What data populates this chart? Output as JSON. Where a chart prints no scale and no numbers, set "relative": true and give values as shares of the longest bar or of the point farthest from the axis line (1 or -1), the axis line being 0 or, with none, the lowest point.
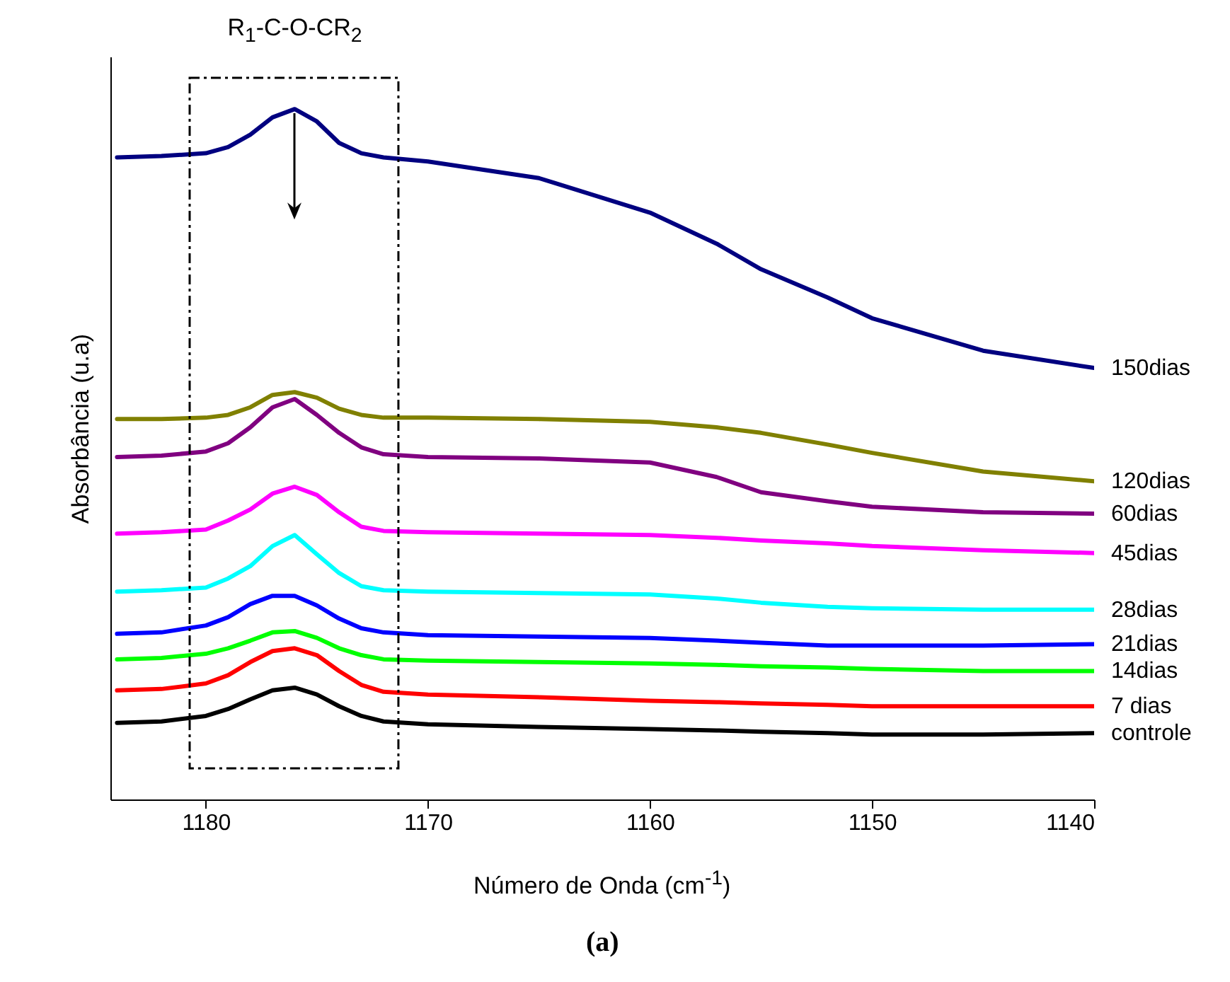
{
  "chart_data": {
    "type": "line",
    "xlabel": "Número de Onda (cm$^{-1}$)",
    "ylabel": "Absorbância (u.a)",
    "relative": true,
    "legend": false,
    "xlim": [
      1184.3,
      1140
    ],
    "xticks": [
      1180,
      1170,
      1160,
      1150,
      1140
    ],
    "x": [
      1184,
      1182,
      1180,
      1179,
      1178,
      1177,
      1176,
      1175,
      1174,
      1173,
      1172,
      1170,
      1165,
      1160,
      1157,
      1155,
      1152,
      1150,
      1145,
      1140
    ],
    "series": [
      {
        "name": "150dias",
        "color": "#000080",
        "values": [
          0.93,
          0.932,
          0.936,
          0.945,
          0.963,
          0.988,
          1,
          0.982,
          0.951,
          0.936,
          0.93,
          0.924,
          0.9,
          0.85,
          0.805,
          0.768,
          0.727,
          0.697,
          0.65,
          0.625
        ]
      },
      {
        "name": "120dias",
        "color": "#808000",
        "values": [
          0.551,
          0.551,
          0.553,
          0.557,
          0.568,
          0.586,
          0.59,
          0.582,
          0.566,
          0.557,
          0.553,
          0.553,
          0.551,
          0.547,
          0.539,
          0.531,
          0.514,
          0.502,
          0.475,
          0.461
        ]
      },
      {
        "name": "60dias",
        "color": "#800080",
        "values": [
          0.496,
          0.498,
          0.504,
          0.516,
          0.539,
          0.568,
          0.58,
          0.557,
          0.531,
          0.51,
          0.5,
          0.496,
          0.494,
          0.488,
          0.467,
          0.445,
          0.432,
          0.424,
          0.416,
          0.414
        ]
      },
      {
        "name": "45dias",
        "color": "#ff00ff",
        "values": [
          0.385,
          0.387,
          0.391,
          0.404,
          0.42,
          0.443,
          0.453,
          0.441,
          0.416,
          0.395,
          0.389,
          0.387,
          0.385,
          0.383,
          0.379,
          0.375,
          0.371,
          0.367,
          0.361,
          0.357
        ]
      },
      {
        "name": "28dias",
        "color": "#00ffff",
        "values": [
          0.301,
          0.303,
          0.307,
          0.32,
          0.338,
          0.367,
          0.383,
          0.355,
          0.328,
          0.309,
          0.303,
          0.301,
          0.299,
          0.297,
          0.291,
          0.285,
          0.279,
          0.277,
          0.275,
          0.275
        ]
      },
      {
        "name": "21dias",
        "color": "#0000ff",
        "values": [
          0.24,
          0.242,
          0.252,
          0.264,
          0.283,
          0.295,
          0.295,
          0.281,
          0.262,
          0.248,
          0.242,
          0.238,
          0.236,
          0.234,
          0.23,
          0.227,
          0.223,
          0.223,
          0.223,
          0.225
        ]
      },
      {
        "name": "14dias",
        "color": "#00ff00",
        "values": [
          0.203,
          0.205,
          0.211,
          0.219,
          0.23,
          0.242,
          0.244,
          0.234,
          0.219,
          0.209,
          0.203,
          0.201,
          0.199,
          0.197,
          0.195,
          0.193,
          0.191,
          0.189,
          0.186,
          0.186
        ]
      },
      {
        "name": "7 dias",
        "color": "#ff0000",
        "values": [
          0.158,
          0.16,
          0.168,
          0.18,
          0.199,
          0.215,
          0.219,
          0.209,
          0.186,
          0.166,
          0.156,
          0.152,
          0.148,
          0.143,
          0.141,
          0.139,
          0.137,
          0.135,
          0.135,
          0.135
        ]
      },
      {
        "name": "controle",
        "color": "#000000",
        "values": [
          0.111,
          0.113,
          0.121,
          0.131,
          0.145,
          0.158,
          0.162,
          0.152,
          0.135,
          0.121,
          0.113,
          0.109,
          0.105,
          0.102,
          0.1,
          0.098,
          0.096,
          0.094,
          0.094,
          0.096
        ]
      }
    ],
    "annotations": [
      "R$_{1}$-C-O-CR$_{2}$",
      "(a)"
    ]
  }
}
